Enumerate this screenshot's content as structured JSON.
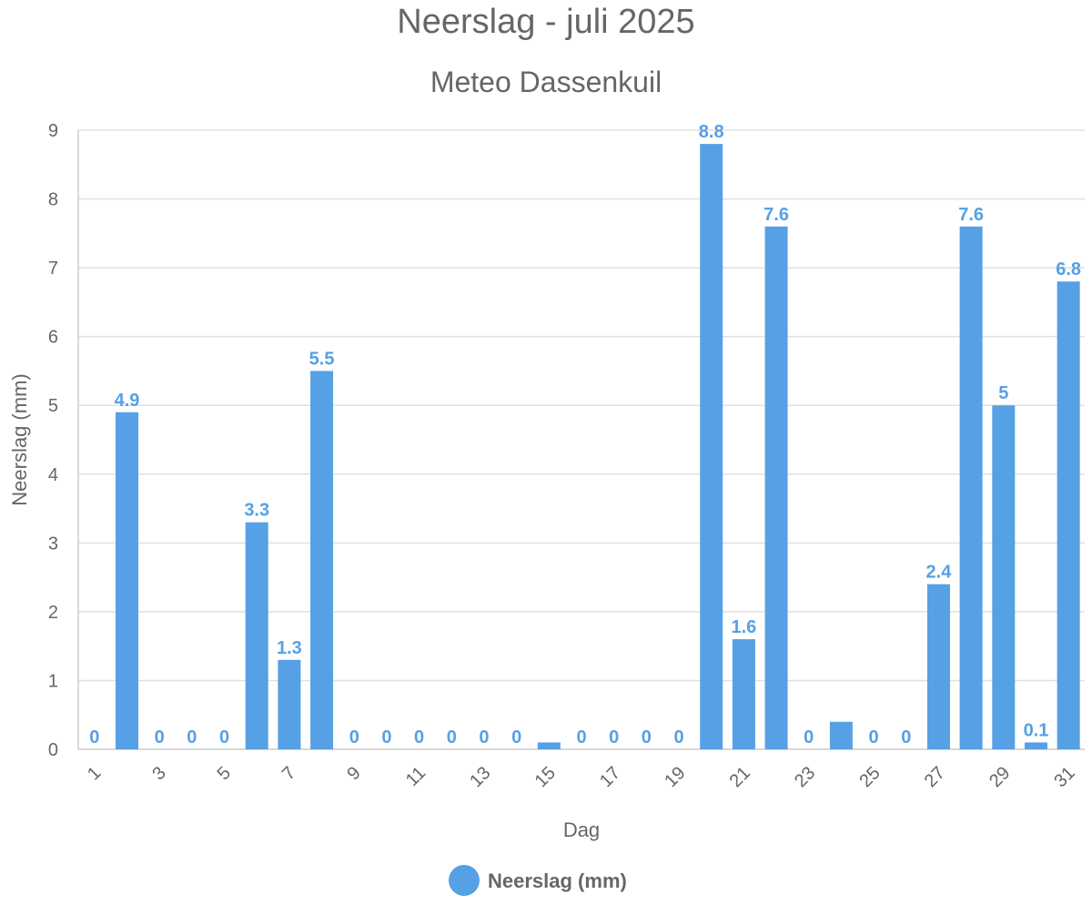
{
  "chart_data": {
    "type": "bar",
    "title": "Neerslag - juli 2025",
    "subtitle": "Meteo Dassenkuil",
    "xlabel": "Dag",
    "ylabel": "Neerslag (mm)",
    "ylim": [
      0,
      9
    ],
    "yticks": [
      0,
      1,
      2,
      3,
      4,
      5,
      6,
      7,
      8,
      9
    ],
    "categories": [
      "1",
      "2",
      "3",
      "4",
      "5",
      "6",
      "7",
      "8",
      "9",
      "10",
      "11",
      "12",
      "13",
      "14",
      "15",
      "16",
      "17",
      "18",
      "19",
      "20",
      "21",
      "22",
      "23",
      "24",
      "25",
      "26",
      "27",
      "28",
      "29",
      "30",
      "31"
    ],
    "xtick_labels": [
      "1",
      "3",
      "5",
      "7",
      "9",
      "11",
      "13",
      "15",
      "17",
      "19",
      "21",
      "23",
      "25",
      "27",
      "29",
      "31"
    ],
    "series": [
      {
        "name": "Neerslag (mm)",
        "color": "#56a0e5",
        "values": [
          0,
          4.9,
          0,
          0,
          0,
          3.3,
          1.3,
          5.5,
          0,
          0,
          0,
          0,
          0,
          0,
          0.1,
          0,
          0,
          0,
          0,
          8.8,
          1.6,
          7.6,
          0,
          0.4,
          0,
          0,
          2.4,
          7.6,
          5,
          0.1,
          6.8
        ],
        "labels": [
          "0",
          "4.9",
          "0",
          "0",
          "0",
          "3.3",
          "1.3",
          "5.5",
          "0",
          "0",
          "0",
          "0",
          "0",
          "0",
          "",
          "0",
          "0",
          "0",
          "0",
          "8.8",
          "1.6",
          "7.6",
          "0",
          "",
          "0",
          "0",
          "2.4",
          "7.6",
          "5",
          "0.1",
          "6.8"
        ]
      }
    ],
    "grid": true,
    "legend": "bottom-center"
  }
}
